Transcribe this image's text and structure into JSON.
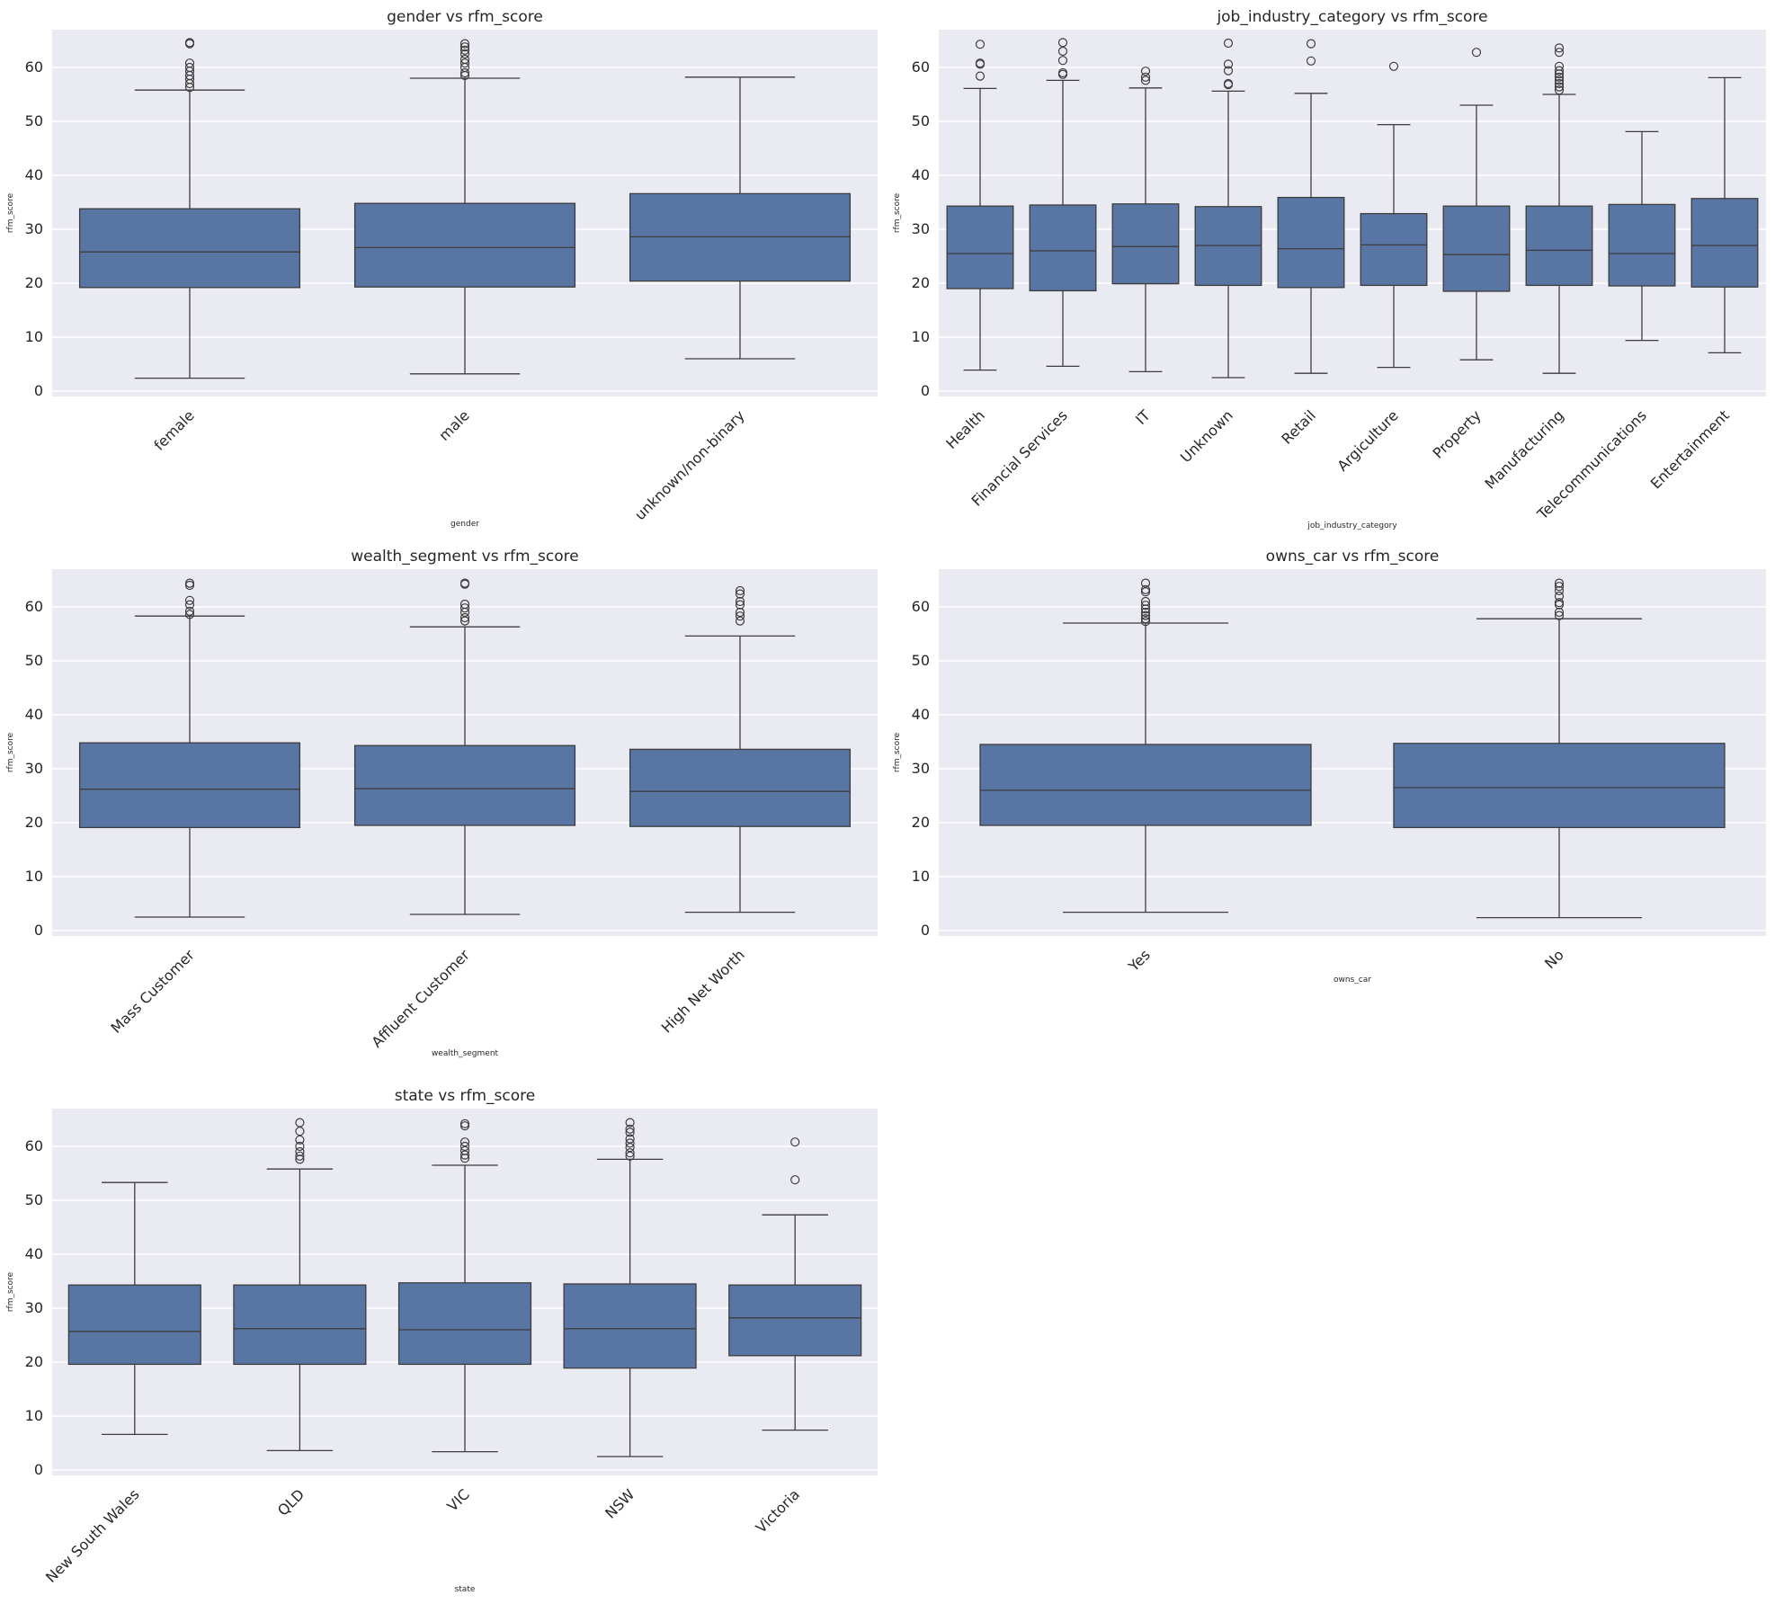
{
  "chart_data": [
    {
      "type": "box",
      "title": "gender vs rfm_score",
      "xlabel": "gender",
      "ylabel": "rfm_score",
      "ylim": [
        -1,
        67
      ],
      "yticks": [
        0,
        10,
        20,
        30,
        40,
        50,
        60
      ],
      "categories": [
        "female",
        "male",
        "unknown/non-binary"
      ],
      "boxes": [
        {
          "q1": 19.2,
          "median": 25.8,
          "q3": 33.8,
          "whisker_low": 2.4,
          "whisker_high": 55.8,
          "outliers": [
            56.3,
            57.0,
            57.8,
            58.5,
            59.3,
            60.0,
            60.8,
            64.4,
            64.6
          ]
        },
        {
          "q1": 19.3,
          "median": 26.6,
          "q3": 34.8,
          "whisker_low": 3.2,
          "whisker_high": 58.0,
          "outliers": [
            58.5,
            59.0,
            60.0,
            60.8,
            61.5,
            62.5,
            63.2,
            63.8,
            64.4
          ]
        },
        {
          "q1": 20.4,
          "median": 28.6,
          "q3": 36.6,
          "whisker_low": 6.0,
          "whisker_high": 58.2,
          "outliers": []
        }
      ]
    },
    {
      "type": "box",
      "title": "job_industry_category vs rfm_score",
      "xlabel": "job_industry_category",
      "ylabel": "rfm_score",
      "ylim": [
        -1,
        67
      ],
      "yticks": [
        0,
        10,
        20,
        30,
        40,
        50,
        60
      ],
      "categories": [
        "Health",
        "Financial Services",
        "IT",
        "Unknown",
        "Retail",
        "Argiculture",
        "Property",
        "Manufacturing",
        "Telecommunications",
        "Entertainment"
      ],
      "boxes": [
        {
          "q1": 19.0,
          "median": 25.5,
          "q3": 34.3,
          "whisker_low": 3.9,
          "whisker_high": 56.1,
          "outliers": [
            58.4,
            60.6,
            60.8,
            64.3
          ]
        },
        {
          "q1": 18.6,
          "median": 26.0,
          "q3": 34.5,
          "whisker_low": 4.6,
          "whisker_high": 57.6,
          "outliers": [
            58.7,
            59.0,
            61.3,
            63.0,
            64.6
          ]
        },
        {
          "q1": 19.9,
          "median": 26.8,
          "q3": 34.7,
          "whisker_low": 3.6,
          "whisker_high": 56.2,
          "outliers": [
            57.6,
            58.2,
            59.3
          ]
        },
        {
          "q1": 19.6,
          "median": 27.0,
          "q3": 34.2,
          "whisker_low": 2.5,
          "whisker_high": 55.6,
          "outliers": [
            56.8,
            57.0,
            59.4,
            60.6,
            64.5
          ]
        },
        {
          "q1": 19.2,
          "median": 26.4,
          "q3": 35.9,
          "whisker_low": 3.3,
          "whisker_high": 55.2,
          "outliers": [
            61.2,
            64.4
          ]
        },
        {
          "q1": 19.6,
          "median": 27.1,
          "q3": 32.9,
          "whisker_low": 4.4,
          "whisker_high": 49.4,
          "outliers": [
            60.2
          ]
        },
        {
          "q1": 18.5,
          "median": 25.3,
          "q3": 34.3,
          "whisker_low": 5.8,
          "whisker_high": 53.0,
          "outliers": [
            62.8
          ]
        },
        {
          "q1": 19.6,
          "median": 26.1,
          "q3": 34.3,
          "whisker_low": 3.3,
          "whisker_high": 55.0,
          "outliers": [
            55.8,
            56.4,
            57.0,
            57.6,
            58.2,
            58.8,
            59.4,
            60.2,
            62.8,
            63.6
          ]
        },
        {
          "q1": 19.5,
          "median": 25.5,
          "q3": 34.6,
          "whisker_low": 9.4,
          "whisker_high": 48.1,
          "outliers": []
        },
        {
          "q1": 19.3,
          "median": 27.0,
          "q3": 35.7,
          "whisker_low": 7.1,
          "whisker_high": 58.1,
          "outliers": []
        }
      ]
    },
    {
      "type": "box",
      "title": "wealth_segment vs rfm_score",
      "xlabel": "wealth_segment",
      "ylabel": "rfm_score",
      "ylim": [
        -1,
        67
      ],
      "yticks": [
        0,
        10,
        20,
        30,
        40,
        50,
        60
      ],
      "categories": [
        "Mass Customer",
        "Affluent Customer",
        "High Net Worth"
      ],
      "boxes": [
        {
          "q1": 19.1,
          "median": 26.2,
          "q3": 34.8,
          "whisker_low": 2.5,
          "whisker_high": 58.3,
          "outliers": [
            58.6,
            59.2,
            60.4,
            61.2,
            64.0,
            64.4
          ]
        },
        {
          "q1": 19.5,
          "median": 26.3,
          "q3": 34.3,
          "whisker_low": 3.0,
          "whisker_high": 56.3,
          "outliers": [
            57.4,
            58.0,
            59.0,
            59.8,
            60.5,
            64.2,
            64.4
          ]
        },
        {
          "q1": 19.3,
          "median": 25.8,
          "q3": 33.6,
          "whisker_low": 3.4,
          "whisker_high": 54.6,
          "outliers": [
            57.4,
            58.3,
            59.0,
            60.4,
            61.0,
            62.4,
            63.0
          ]
        }
      ]
    },
    {
      "type": "box",
      "title": "owns_car vs rfm_score",
      "xlabel": "owns_car",
      "ylabel": "rfm_score",
      "ylim": [
        -1,
        67
      ],
      "yticks": [
        0,
        10,
        20,
        30,
        40,
        50,
        60
      ],
      "categories": [
        "Yes",
        "No"
      ],
      "boxes": [
        {
          "q1": 19.5,
          "median": 26.0,
          "q3": 34.5,
          "whisker_low": 3.4,
          "whisker_high": 57.0,
          "outliers": [
            57.3,
            57.8,
            58.4,
            59.0,
            59.6,
            60.3,
            61.0,
            62.8,
            63.2,
            64.4
          ]
        },
        {
          "q1": 19.1,
          "median": 26.5,
          "q3": 34.7,
          "whisker_low": 2.4,
          "whisker_high": 57.8,
          "outliers": [
            58.4,
            59.0,
            60.4,
            60.8,
            62.0,
            63.0,
            63.8,
            64.4
          ]
        }
      ]
    },
    {
      "type": "box",
      "title": "state vs rfm_score",
      "xlabel": "state",
      "ylabel": "rfm_score",
      "ylim": [
        -1,
        67
      ],
      "yticks": [
        0,
        10,
        20,
        30,
        40,
        50,
        60
      ],
      "categories": [
        "New South Wales",
        "QLD",
        "VIC",
        "NSW",
        "Victoria"
      ],
      "boxes": [
        {
          "q1": 19.6,
          "median": 25.7,
          "q3": 34.3,
          "whisker_low": 6.6,
          "whisker_high": 53.3,
          "outliers": []
        },
        {
          "q1": 19.6,
          "median": 26.2,
          "q3": 34.3,
          "whisker_low": 3.6,
          "whisker_high": 55.8,
          "outliers": [
            57.6,
            58.2,
            59.0,
            60.0,
            61.2,
            62.8,
            64.4
          ]
        },
        {
          "q1": 19.6,
          "median": 26.0,
          "q3": 34.7,
          "whisker_low": 3.4,
          "whisker_high": 56.5,
          "outliers": [
            57.8,
            58.4,
            59.2,
            60.0,
            60.8,
            63.8,
            64.2
          ]
        },
        {
          "q1": 18.9,
          "median": 26.2,
          "q3": 34.5,
          "whisker_low": 2.5,
          "whisker_high": 57.6,
          "outliers": [
            58.2,
            58.8,
            59.8,
            60.6,
            61.4,
            62.6,
            63.2,
            64.4
          ]
        },
        {
          "q1": 21.2,
          "median": 28.2,
          "q3": 34.3,
          "whisker_low": 7.4,
          "whisker_high": 47.3,
          "outliers": [
            53.8,
            60.8
          ]
        }
      ]
    }
  ]
}
